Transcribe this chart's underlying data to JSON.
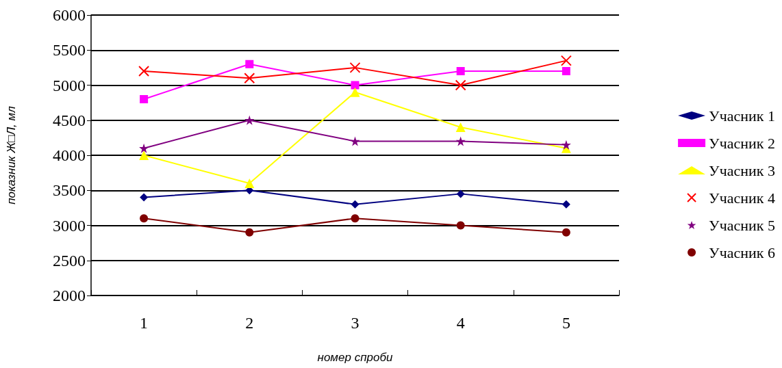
{
  "chart_data": {
    "type": "line",
    "xlabel": "номер спроби",
    "ylabel": "показник Ж□Л, мл",
    "categories": [
      "1",
      "2",
      "3",
      "4",
      "5"
    ],
    "ylim": [
      2000,
      6000
    ],
    "yticks": [
      2000,
      2500,
      3000,
      3500,
      4000,
      4500,
      5000,
      5500,
      6000
    ],
    "grid": "y",
    "legend": "right",
    "series": [
      {
        "name": "Учасник 1",
        "color": "#000080",
        "marker": "diamond",
        "values": [
          3400,
          3500,
          3300,
          3450,
          3300
        ]
      },
      {
        "name": "Учасник 2",
        "color": "#ff00ff",
        "marker": "square",
        "values": [
          4800,
          5300,
          5000,
          5200,
          5200
        ]
      },
      {
        "name": "Учасник 3",
        "color": "#ffff00",
        "marker": "triangle",
        "values": [
          4000,
          3600,
          4900,
          4400,
          4100
        ]
      },
      {
        "name": "Учасник 4",
        "color": "#ff0000",
        "marker": "cross",
        "values": [
          5200,
          5100,
          5250,
          5000,
          5350
        ]
      },
      {
        "name": "Учасник 5",
        "color": "#800080",
        "marker": "star",
        "values": [
          4100,
          4500,
          4200,
          4200,
          4150
        ]
      },
      {
        "name": "Учасник 6",
        "color": "#800000",
        "marker": "circle",
        "values": [
          3100,
          2900,
          3100,
          3000,
          2900
        ]
      }
    ]
  }
}
